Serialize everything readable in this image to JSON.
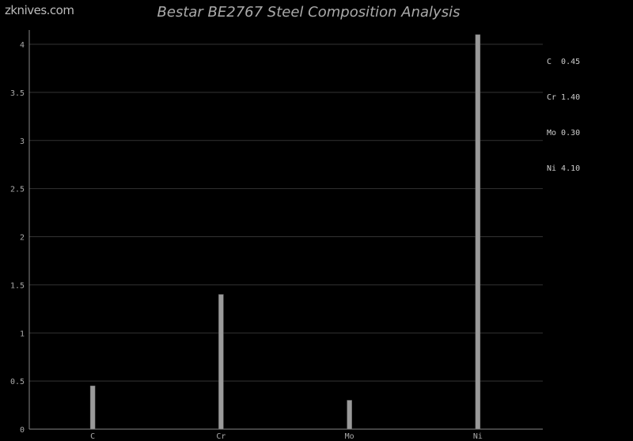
{
  "watermark": "zknives.com",
  "chart_data": {
    "type": "bar",
    "title": "Bestar BE2767 Steel Composition Analysis",
    "categories": [
      "C",
      "Cr",
      "Mo",
      "Ni"
    ],
    "values": [
      0.45,
      1.4,
      0.3,
      4.1
    ],
    "legend": [
      "C  0.45",
      "Cr 1.40",
      "Mo 0.30",
      "Ni 4.10"
    ],
    "legend_position": "top-right",
    "yticks": [
      "0",
      "0.5",
      "1",
      "1.5",
      "2",
      "2.5",
      "3",
      "3.5",
      "4"
    ],
    "ylim": [
      0,
      4.15
    ],
    "grid": true,
    "colors": {
      "bar": "#9a9a9a",
      "grid": "#333333",
      "axis": "#888888",
      "background": "#000000"
    }
  }
}
